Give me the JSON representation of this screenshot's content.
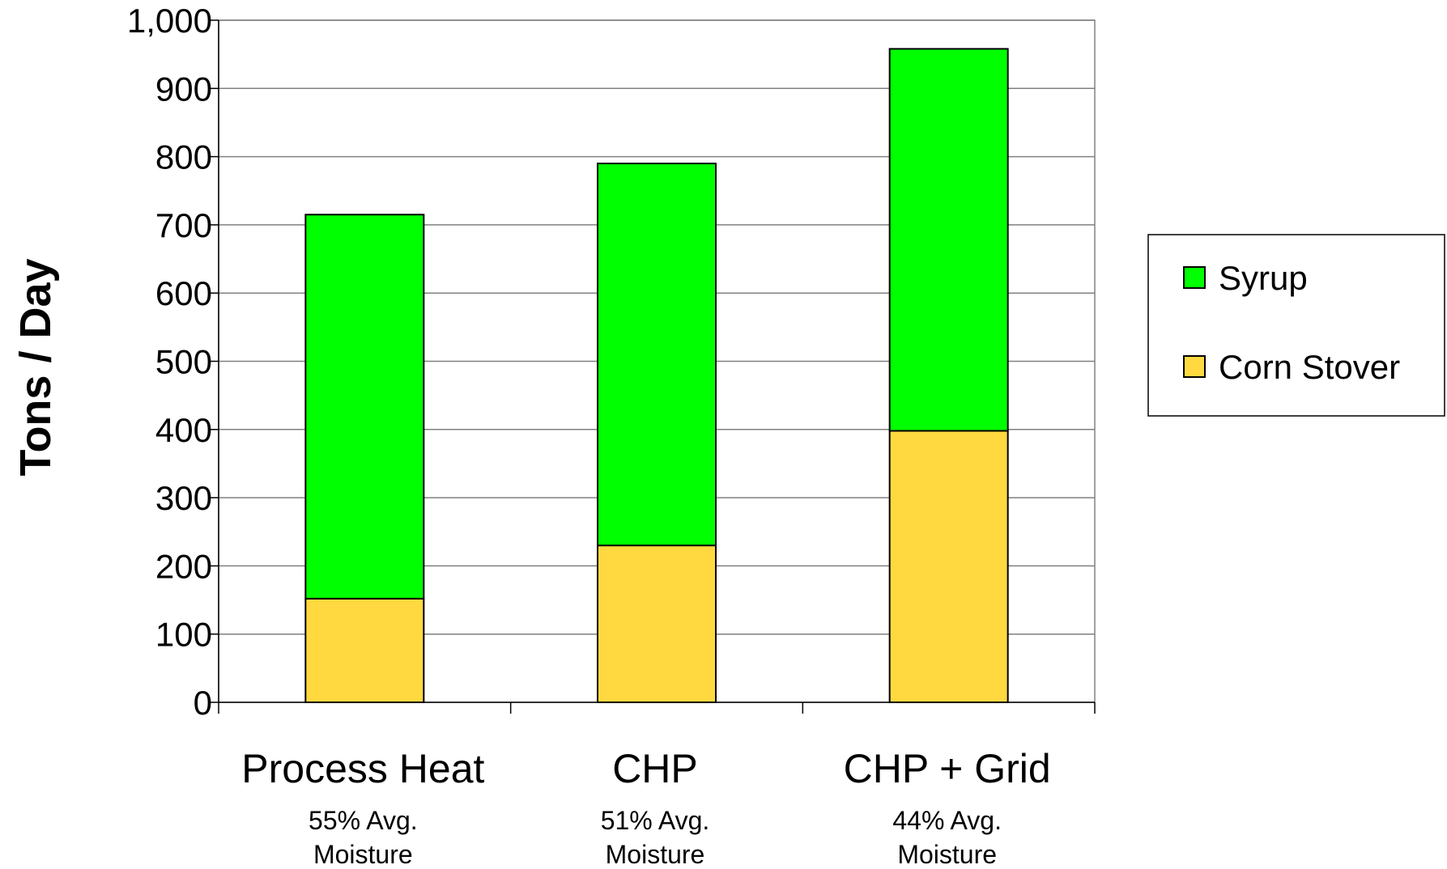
{
  "chart_data": {
    "type": "bar",
    "stacked": true,
    "categories": [
      "Process Heat",
      "CHP",
      "CHP + Grid"
    ],
    "category_sublabels": [
      [
        "55% Avg.",
        "Moisture"
      ],
      [
        "51% Avg.",
        "Moisture"
      ],
      [
        "44% Avg.",
        "Moisture"
      ]
    ],
    "series": [
      {
        "name": "Corn Stover",
        "values": [
          152,
          230,
          398
        ],
        "color": "#FFD93F"
      },
      {
        "name": "Syrup",
        "values": [
          563,
          560,
          560
        ],
        "color": "#00FF00"
      }
    ],
    "legend_order": [
      "Syrup",
      "Corn Stover"
    ],
    "title": "",
    "xlabel": "",
    "ylabel": "Tons / Day",
    "ylim": [
      0,
      1000
    ],
    "yticks": [
      0,
      100,
      200,
      300,
      400,
      500,
      600,
      700,
      800,
      900,
      1000
    ],
    "ytick_labels": [
      "0",
      "100",
      "200",
      "300",
      "400",
      "500",
      "600",
      "700",
      "800",
      "900",
      "1,000"
    ],
    "grid": true,
    "legend_position": "right"
  }
}
